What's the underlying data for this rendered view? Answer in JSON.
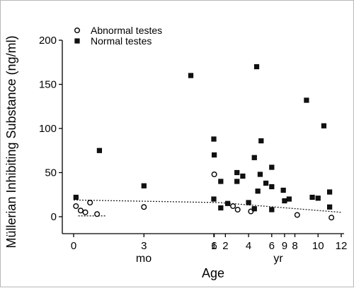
{
  "chart_data": {
    "type": "scatter",
    "title": "",
    "ylabel": "Müllerian Inhibiting Substance (ng/ml)",
    "xlabel": "Age",
    "ylim": [
      0,
      200
    ],
    "yticks": [
      0,
      50,
      100,
      150,
      200
    ],
    "x_axis": {
      "segments": [
        {
          "unit": "mo",
          "range": [
            0,
            12
          ],
          "tick_labels": [
            "0",
            "3",
            "6",
            "9"
          ]
        },
        {
          "unit": "yr",
          "range": [
            1,
            12
          ],
          "tick_labels": [
            "1",
            "2",
            "4",
            "6",
            "8",
            "10",
            "12"
          ]
        }
      ]
    },
    "legend": {
      "position": "top-left",
      "entries": [
        {
          "label": "Abnormal testes",
          "marker": "open-circle"
        },
        {
          "label": "Normal testes",
          "marker": "filled-square"
        }
      ]
    },
    "series": [
      {
        "name": "Abnormal testes",
        "marker": "open-circle",
        "points": [
          {
            "unit": "mo",
            "x": 0.1,
            "y": 12
          },
          {
            "unit": "mo",
            "x": 0.3,
            "y": 7
          },
          {
            "unit": "mo",
            "x": 0.5,
            "y": 5
          },
          {
            "unit": "mo",
            "x": 0.7,
            "y": 16
          },
          {
            "unit": "mo",
            "x": 1.0,
            "y": 3
          },
          {
            "unit": "mo",
            "x": 3.0,
            "y": 11
          },
          {
            "unit": "mo",
            "x": 6.0,
            "y": 48
          },
          {
            "unit": "mo",
            "x": 6.8,
            "y": 12
          },
          {
            "unit": "mo",
            "x": 7.0,
            "y": 8
          },
          {
            "unit": "mo",
            "x": 11.0,
            "y": -1
          },
          {
            "unit": "yr",
            "x": 4.2,
            "y": 6
          },
          {
            "unit": "yr",
            "x": 8.2,
            "y": 2
          }
        ]
      },
      {
        "name": "Normal testes",
        "marker": "filled-square",
        "points": [
          {
            "unit": "mo",
            "x": 0.1,
            "y": 22
          },
          {
            "unit": "mo",
            "x": 1.1,
            "y": 75
          },
          {
            "unit": "mo",
            "x": 3.0,
            "y": 35
          },
          {
            "unit": "mo",
            "x": 5.0,
            "y": 160
          },
          {
            "unit": "mo",
            "x": 6.0,
            "y": 70
          },
          {
            "unit": "mo",
            "x": 8.0,
            "y": 86
          },
          {
            "unit": "mo",
            "x": 9.0,
            "y": 18
          },
          {
            "unit": "yr",
            "x": 1.0,
            "y": 88
          },
          {
            "unit": "yr",
            "x": 1.0,
            "y": 20
          },
          {
            "unit": "yr",
            "x": 1.6,
            "y": 40
          },
          {
            "unit": "yr",
            "x": 1.6,
            "y": 10
          },
          {
            "unit": "yr",
            "x": 2.2,
            "y": 15
          },
          {
            "unit": "yr",
            "x": 3.0,
            "y": 50
          },
          {
            "unit": "yr",
            "x": 3.0,
            "y": 40
          },
          {
            "unit": "yr",
            "x": 3.5,
            "y": 46
          },
          {
            "unit": "yr",
            "x": 4.0,
            "y": 16
          },
          {
            "unit": "yr",
            "x": 4.5,
            "y": 67
          },
          {
            "unit": "yr",
            "x": 4.5,
            "y": 9
          },
          {
            "unit": "yr",
            "x": 4.7,
            "y": 170
          },
          {
            "unit": "yr",
            "x": 4.8,
            "y": 29
          },
          {
            "unit": "yr",
            "x": 5.0,
            "y": 48
          },
          {
            "unit": "yr",
            "x": 5.5,
            "y": 38
          },
          {
            "unit": "yr",
            "x": 6.0,
            "y": 56
          },
          {
            "unit": "yr",
            "x": 6.0,
            "y": 34
          },
          {
            "unit": "yr",
            "x": 6.0,
            "y": 8
          },
          {
            "unit": "yr",
            "x": 7.0,
            "y": 30
          },
          {
            "unit": "yr",
            "x": 7.5,
            "y": 20
          },
          {
            "unit": "yr",
            "x": 9.0,
            "y": 132
          },
          {
            "unit": "yr",
            "x": 9.5,
            "y": 22
          },
          {
            "unit": "yr",
            "x": 10.0,
            "y": 21
          },
          {
            "unit": "yr",
            "x": 10.5,
            "y": 103
          },
          {
            "unit": "yr",
            "x": 11.0,
            "y": 28
          },
          {
            "unit": "yr",
            "x": 11.0,
            "y": 11
          }
        ]
      }
    ],
    "reference_lines": [
      {
        "style": "dotted",
        "points": [
          {
            "unit": "mo",
            "x": 0,
            "y": 19
          },
          {
            "unit": "yr",
            "x": 1.5,
            "y": 16
          },
          {
            "unit": "yr",
            "x": 12,
            "y": 5
          }
        ]
      },
      {
        "style": "dotted",
        "points": [
          {
            "unit": "mo",
            "x": 0.2,
            "y": 1
          },
          {
            "unit": "mo",
            "x": 1.4,
            "y": 1
          }
        ]
      }
    ],
    "grid": false
  }
}
